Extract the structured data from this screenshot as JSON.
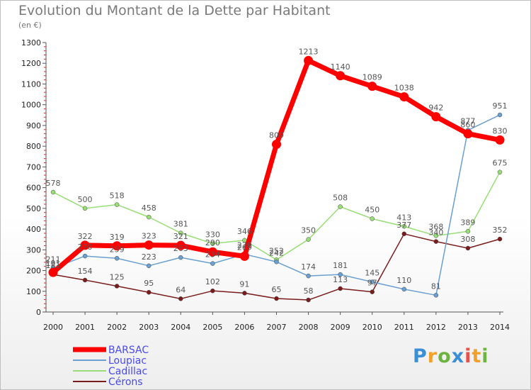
{
  "header": {
    "title": "Evolution du Montant de la Dette par Habitant",
    "unit": "(en €)"
  },
  "logo": {
    "letters": [
      "P",
      "r",
      "o",
      "x",
      "i",
      "t",
      "i"
    ],
    "colors": [
      "#3b8fd6",
      "#f2a02a",
      "#6db33f",
      "#3b8fd6",
      "#e8504a",
      "#f2a02a",
      "#6db33f"
    ]
  },
  "chart_data": {
    "type": "line",
    "title": "Evolution du Montant de la Dette par Habitant",
    "ylabel": "(en €)",
    "xlabel": "",
    "ylim": [
      0,
      1300
    ],
    "y_ticks": [
      0,
      100,
      200,
      300,
      400,
      500,
      600,
      700,
      800,
      900,
      1000,
      1100,
      1200,
      1300
    ],
    "categories": [
      "2000",
      "2001",
      "2002",
      "2003",
      "2004",
      "2005",
      "2006",
      "2007",
      "2008",
      "2009",
      "2010",
      "2011",
      "2012",
      "2013",
      "2014"
    ],
    "grid": false,
    "legend_position": "bottom-left",
    "series": [
      {
        "name": "BARSAC",
        "color": "#ff0000",
        "values": [
          191,
          322,
          319,
          323,
          321,
          290,
          269,
          809,
          1213,
          1140,
          1089,
          1038,
          942,
          860,
          830
        ]
      },
      {
        "name": "Loupiac",
        "color": "#6a9fd0",
        "values": [
          211,
          270,
          259,
          223,
          263,
          234,
          279,
          242,
          174,
          181,
          145,
          110,
          81,
          877,
          951
        ]
      },
      {
        "name": "Cadillac",
        "color": "#99dd77",
        "values": [
          578,
          500,
          518,
          458,
          381,
          330,
          346,
          252,
          350,
          508,
          450,
          413,
          368,
          389,
          675
        ]
      },
      {
        "name": "Cérons",
        "color": "#7a1c1c",
        "values": [
          181,
          154,
          125,
          95,
          64,
          102,
          91,
          65,
          58,
          113,
          97,
          377,
          340,
          308,
          352
        ]
      }
    ]
  }
}
